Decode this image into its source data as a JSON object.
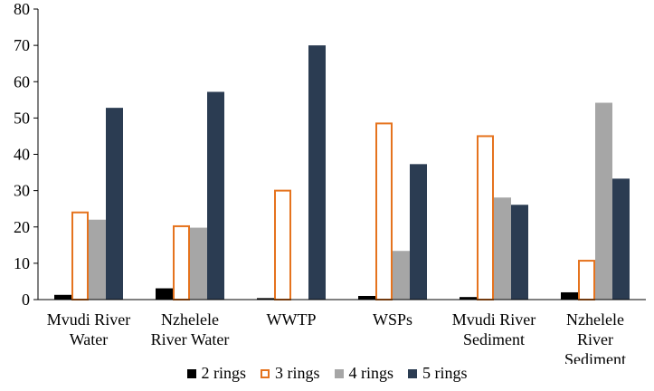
{
  "chart_data": {
    "type": "bar",
    "title": "",
    "xlabel": "",
    "ylabel": "",
    "ylim": [
      0,
      80
    ],
    "yticks": [
      "0",
      "10",
      "20",
      "30",
      "40",
      "50",
      "60",
      "70",
      "80"
    ],
    "grid": false,
    "legend_position": "bottom",
    "categories": [
      [
        "Mvudi  River",
        "Water"
      ],
      [
        "Nzhelele",
        "River Water"
      ],
      [
        "WWTP"
      ],
      [
        "WSPs"
      ],
      [
        "Mvudi River",
        "Sediment"
      ],
      [
        "Nzhelele",
        "River",
        "Sediment"
      ]
    ],
    "series": [
      {
        "name": "2 rings",
        "values": [
          1.3,
          3.1,
          0.4,
          1.0,
          0.7,
          2.0
        ],
        "color": "#000000",
        "style": "filled"
      },
      {
        "name": "3 rings",
        "values": [
          24.0,
          20.2,
          30.0,
          48.5,
          45.0,
          10.7
        ],
        "color": "#e5731e",
        "style": "outline"
      },
      {
        "name": "4 rings",
        "values": [
          22.0,
          19.8,
          0.0,
          13.4,
          28.1,
          54.2
        ],
        "color": "#a6a6a6",
        "style": "filled"
      },
      {
        "name": "5 rings",
        "values": [
          52.8,
          57.2,
          70.0,
          37.3,
          26.1,
          33.3
        ],
        "color": "#2b3c52",
        "style": "filled"
      }
    ]
  }
}
